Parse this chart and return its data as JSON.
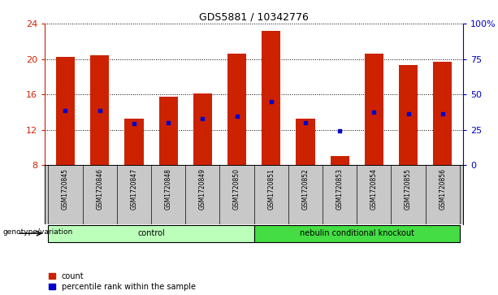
{
  "title": "GDS5881 / 10342776",
  "samples": [
    "GSM1720845",
    "GSM1720846",
    "GSM1720847",
    "GSM1720848",
    "GSM1720849",
    "GSM1720850",
    "GSM1720851",
    "GSM1720852",
    "GSM1720853",
    "GSM1720854",
    "GSM1720855",
    "GSM1720856"
  ],
  "bar_heights": [
    20.2,
    20.4,
    13.3,
    15.7,
    16.1,
    20.6,
    23.2,
    13.3,
    9.0,
    20.6,
    19.3,
    19.7
  ],
  "blue_marker_y": [
    14.2,
    14.2,
    12.7,
    12.8,
    13.3,
    13.5,
    15.2,
    12.8,
    11.9,
    14.0,
    13.8,
    13.8
  ],
  "bar_color": "#cc2200",
  "blue_color": "#0000cc",
  "ymin": 8,
  "ymax": 24,
  "yticks_left": [
    8,
    12,
    16,
    20,
    24
  ],
  "yticks_right": [
    0,
    25,
    50,
    75,
    100
  ],
  "ylabel_left_color": "#cc2200",
  "ylabel_right_color": "#0000bb",
  "bar_width": 0.55,
  "groups": [
    {
      "label": "control",
      "indices": [
        0,
        1,
        2,
        3,
        4,
        5
      ],
      "color": "#bbffbb"
    },
    {
      "label": "nebulin conditional knockout",
      "indices": [
        6,
        7,
        8,
        9,
        10,
        11
      ],
      "color": "#44dd44"
    }
  ],
  "legend_items": [
    {
      "label": "count",
      "color": "#cc2200"
    },
    {
      "label": "percentile rank within the sample",
      "color": "#0000cc"
    }
  ],
  "genotype_label": "genotype/variation",
  "background_color": "#ffffff",
  "xticklabel_bg": "#c8c8c8"
}
